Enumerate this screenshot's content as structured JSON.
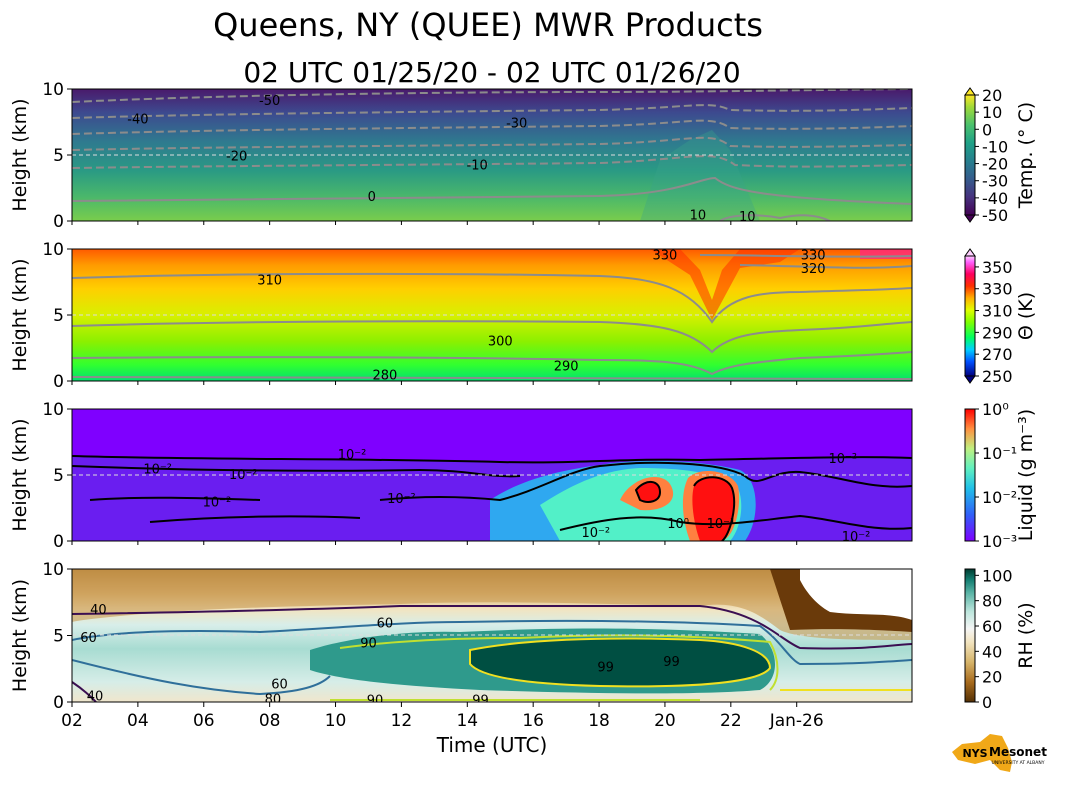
{
  "figure": {
    "title": "Queens, NY (QUEE) MWR Products",
    "subtitle": "02 UTC 01/25/20 - 02 UTC 01/26/20"
  },
  "logo": {
    "text": "NYS",
    "subtext": "Mesonet",
    "tagline": "UNIVERSITY AT ALBANY"
  },
  "chart_data": [
    {
      "type": "heatmap",
      "name": "temperature",
      "ylabel": "Height (km)",
      "xlabel": "",
      "ylim": [
        0,
        10
      ],
      "xlim": [
        2,
        27.5
      ],
      "yticks": [
        "0",
        "5",
        "10"
      ],
      "colorbar": {
        "label": "Temp. (° C)",
        "ticks": [
          "20",
          "10",
          "0",
          "-10",
          "-20",
          "-30",
          "-40",
          "-50"
        ],
        "range": [
          -50,
          20
        ]
      },
      "contour_labels": [
        {
          "text": "-50",
          "x": 8.0,
          "y": 9.1
        },
        {
          "text": "-40",
          "x": 4.0,
          "y": 7.7
        },
        {
          "text": "-30",
          "x": 15.5,
          "y": 7.4
        },
        {
          "text": "-20",
          "x": 7.0,
          "y": 4.9
        },
        {
          "text": "-10",
          "x": 14.3,
          "y": 4.2
        },
        {
          "text": "0",
          "x": 11.1,
          "y": 1.8
        },
        {
          "text": "10",
          "x": 21.0,
          "y": 0.4
        },
        {
          "text": "10",
          "x": 22.5,
          "y": 0.3
        }
      ],
      "grid": "dashed line at 5 km"
    },
    {
      "type": "heatmap",
      "name": "potential_temperature",
      "ylabel": "Height (km)",
      "xlabel": "",
      "ylim": [
        0,
        10
      ],
      "xlim": [
        2,
        27.5
      ],
      "yticks": [
        "0",
        "5",
        "10"
      ],
      "colorbar": {
        "label": "Θ (K)",
        "ticks": [
          "350",
          "330",
          "310",
          "290",
          "270",
          "250"
        ],
        "range": [
          250,
          360
        ]
      },
      "contour_labels": [
        {
          "text": "310",
          "x": 8.0,
          "y": 7.6
        },
        {
          "text": "300",
          "x": 15.0,
          "y": 3.0
        },
        {
          "text": "290",
          "x": 17.0,
          "y": 1.1
        },
        {
          "text": "280",
          "x": 11.5,
          "y": 0.4
        },
        {
          "text": "330",
          "x": 20.0,
          "y": 9.5
        },
        {
          "text": "330",
          "x": 24.5,
          "y": 9.5
        },
        {
          "text": "320",
          "x": 24.5,
          "y": 8.5
        }
      ],
      "grid": "dashed line at 5 km"
    },
    {
      "type": "heatmap",
      "name": "liquid",
      "ylabel": "Height (km)",
      "xlabel": "",
      "ylim": [
        0,
        10
      ],
      "xlim": [
        2,
        27.5
      ],
      "yticks": [
        "0",
        "5",
        "10"
      ],
      "colorbar": {
        "label": "Liquid (g m⁻³)",
        "ticks": [
          "10⁰",
          "10⁻¹",
          "10⁻²",
          "10⁻³"
        ],
        "scale": "log",
        "range": [
          0.001,
          1
        ]
      },
      "contour_labels": [
        {
          "text": "10⁻²",
          "x": 10.5,
          "y": 6.5
        },
        {
          "text": "10⁻²",
          "x": 4.6,
          "y": 5.4
        },
        {
          "text": "10⁻²",
          "x": 7.2,
          "y": 5.0
        },
        {
          "text": "10⁻²",
          "x": 6.4,
          "y": 2.9
        },
        {
          "text": "10⁻²",
          "x": 12.0,
          "y": 3.2
        },
        {
          "text": "10⁻²",
          "x": 17.9,
          "y": 0.6
        },
        {
          "text": "10⁰",
          "x": 20.4,
          "y": 1.3
        },
        {
          "text": "10⁻¹",
          "x": 21.7,
          "y": 1.3
        },
        {
          "text": "10⁻²",
          "x": 25.4,
          "y": 6.2
        },
        {
          "text": "10⁻²",
          "x": 25.8,
          "y": 0.3
        }
      ],
      "grid": "dashed line at 5 km"
    },
    {
      "type": "heatmap",
      "name": "relative_humidity",
      "ylabel": "Height (km)",
      "xlabel": "Time (UTC)",
      "ylim": [
        0,
        10
      ],
      "xlim": [
        2,
        27.5
      ],
      "yticks": [
        "0",
        "5",
        "10"
      ],
      "xticks": [
        {
          "label": "02",
          "x": 2
        },
        {
          "label": "04",
          "x": 4
        },
        {
          "label": "06",
          "x": 6
        },
        {
          "label": "08",
          "x": 8
        },
        {
          "label": "10",
          "x": 10
        },
        {
          "label": "12",
          "x": 12
        },
        {
          "label": "14",
          "x": 14
        },
        {
          "label": "16",
          "x": 16
        },
        {
          "label": "18",
          "x": 18
        },
        {
          "label": "20",
          "x": 20
        },
        {
          "label": "22",
          "x": 22
        },
        {
          "label": "Jan-26",
          "x": 24
        }
      ],
      "colorbar": {
        "label": "RH (%)",
        "ticks": [
          "100",
          "80",
          "60",
          "40",
          "20",
          "0"
        ],
        "range": [
          0,
          105
        ]
      },
      "contour_labels": [
        {
          "text": "40",
          "x": 2.8,
          "y": 6.9
        },
        {
          "text": "60",
          "x": 2.5,
          "y": 4.8
        },
        {
          "text": "60",
          "x": 11.5,
          "y": 5.9
        },
        {
          "text": "90",
          "x": 11.0,
          "y": 4.4
        },
        {
          "text": "99",
          "x": 18.2,
          "y": 2.6
        },
        {
          "text": "99",
          "x": 20.2,
          "y": 3.0
        },
        {
          "text": "60",
          "x": 8.3,
          "y": 1.3
        },
        {
          "text": "40",
          "x": 2.7,
          "y": 0.4
        },
        {
          "text": "80",
          "x": 8.1,
          "y": 0.2
        },
        {
          "text": "90",
          "x": 11.2,
          "y": 0.1
        },
        {
          "text": "99",
          "x": 14.4,
          "y": 0.1
        }
      ],
      "grid": "dashed line at 5 km"
    }
  ]
}
